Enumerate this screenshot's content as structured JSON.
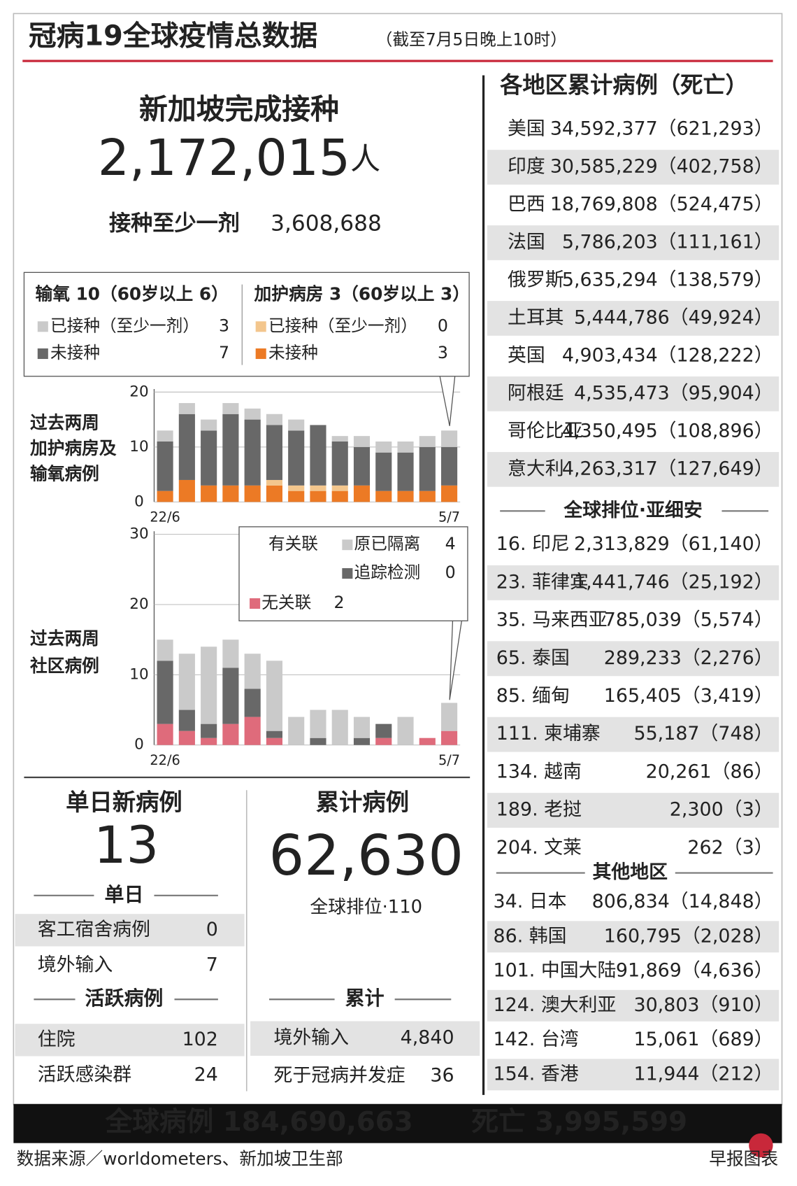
{
  "header": {
    "title": "冠病19全球疫情总数据",
    "subtitle": "（截至7月5日晚上10时）"
  },
  "vaccination": {
    "title": "新加坡完成接种",
    "completed": "2,172,015",
    "unit": "人",
    "at_least_one_label": "接种至少一剂",
    "at_least_one": "3,608,688"
  },
  "chart_data": [
    {
      "type": "bar",
      "stacked": true,
      "title_lines": [
        "过去两周",
        "加护病房及",
        "输氧病例"
      ],
      "legend_groups": [
        "输氧 10（60岁以上 6）",
        "加护病房 3（60岁以上 3）"
      ],
      "categories": [
        "22/6",
        null,
        null,
        null,
        null,
        null,
        null,
        null,
        null,
        null,
        null,
        null,
        null,
        "5/7"
      ],
      "ylim": [
        0,
        20
      ],
      "yticks": [
        0,
        10,
        20
      ],
      "grid": true,
      "series": [
        {
          "name": "未接种",
          "color": "#ec7a25",
          "values": [
            2,
            4,
            3,
            3,
            3,
            3,
            2,
            2,
            2,
            3,
            2,
            2,
            2,
            3
          ]
        },
        {
          "name": "已接种（至少一剂）",
          "color": "#f3c68d",
          "values": [
            0,
            0,
            0,
            0,
            0,
            1,
            1,
            1,
            1,
            0,
            0,
            0,
            0,
            0
          ]
        },
        {
          "name": "未接种",
          "color": "#686868",
          "values": [
            9,
            12,
            10,
            13,
            12,
            10,
            10,
            11,
            8,
            7,
            7,
            7,
            8,
            7
          ]
        },
        {
          "name": "已接种（至少一剂）",
          "color": "#cacaca",
          "values": [
            2,
            2,
            2,
            2,
            2,
            2,
            2,
            0,
            1,
            2,
            2,
            2,
            2,
            3
          ]
        }
      ]
    },
    {
      "type": "bar",
      "stacked": true,
      "title_lines": [
        "过去两周",
        "社区病例"
      ],
      "legend_group": "有关联",
      "categories": [
        "22/6",
        null,
        null,
        null,
        null,
        null,
        null,
        null,
        null,
        null,
        null,
        null,
        null,
        "5/7"
      ],
      "ylim": [
        0,
        30
      ],
      "yticks": [
        0,
        10,
        20,
        30
      ],
      "grid": true,
      "series": [
        {
          "name": "无关联",
          "color": "#df6b7b",
          "values": [
            3,
            2,
            1,
            3,
            4,
            1,
            0,
            0,
            0,
            0,
            1,
            0,
            1,
            2
          ]
        },
        {
          "name": "追踪检测",
          "color": "#686868",
          "values": [
            9,
            3,
            2,
            8,
            4,
            1,
            0,
            1,
            0,
            1,
            2,
            0,
            0,
            0
          ]
        },
        {
          "name": "原已隔离",
          "color": "#cacaca",
          "values": [
            3,
            8,
            11,
            4,
            5,
            10,
            4,
            4,
            5,
            3,
            0,
            4,
            0,
            4
          ]
        }
      ]
    }
  ],
  "daily": {
    "title": "单日新病例",
    "value": "13",
    "section": "单日",
    "rows": [
      [
        "客工宿舍病例",
        "0"
      ],
      [
        "境外输入",
        "7"
      ]
    ],
    "active_section": "活跃病例",
    "active_rows": [
      [
        "住院",
        "102"
      ],
      [
        "活跃感染群",
        "24"
      ]
    ]
  },
  "cumulative": {
    "title": "累计病例",
    "value": "62,630",
    "rank": "全球排位·110",
    "section": "累计",
    "rows": [
      [
        "境外输入",
        "4,840"
      ],
      [
        "死于冠病并发症",
        "36"
      ]
    ]
  },
  "regions": {
    "title": "各地区累计病例（死亡）",
    "top": [
      [
        "美国",
        "34,592,377（621,293）"
      ],
      [
        "印度",
        "30,585,229（402,758）"
      ],
      [
        "巴西",
        "18,769,808（524,475）"
      ],
      [
        "法国",
        "5,786,203（111,161）"
      ],
      [
        "俄罗斯",
        "5,635,294（138,579）"
      ],
      [
        "土耳其",
        "5,444,786（49,924）"
      ],
      [
        "英国",
        "4,903,434（128,222）"
      ],
      [
        "阿根廷",
        "4,535,473（95,904）"
      ],
      [
        "哥伦比亚",
        "4,350,495（108,896）"
      ],
      [
        "意大利",
        "4,263,317（127,649）"
      ]
    ],
    "asean_title": "全球排位·亚细安",
    "asean": [
      [
        "16. 印尼",
        "2,313,829（61,140）"
      ],
      [
        "23. 菲律宾",
        "1,441,746（25,192）"
      ],
      [
        "35. 马来西亚",
        "785,039（5,574）"
      ],
      [
        "65. 泰国",
        "289,233（2,276）"
      ],
      [
        "85. 缅甸",
        "165,405（3,419）"
      ],
      [
        "111. 柬埔寨",
        "55,187（748）"
      ],
      [
        "134. 越南",
        "20,261（86）"
      ],
      [
        "189. 老挝",
        "2,300（3）"
      ],
      [
        "204. 文莱",
        "262（3）"
      ]
    ],
    "other_title": "其他地区",
    "other": [
      [
        "34. 日本",
        "806,834（14,848）"
      ],
      [
        "86. 韩国",
        "160,795（2,028）"
      ],
      [
        "101. 中国大陆",
        "91,869（4,636）"
      ],
      [
        "124. 澳大利亚",
        "30,803（910）"
      ],
      [
        "142. 台湾",
        "15,061（689）"
      ],
      [
        "154. 香港",
        "11,944（212）"
      ]
    ]
  },
  "footer": {
    "global_cases": "全球病例 184,690,663",
    "global_deaths": "死亡 3,995,599",
    "source": "数据来源／worldometers、新加坡卫生部",
    "credit": "早报图表"
  }
}
